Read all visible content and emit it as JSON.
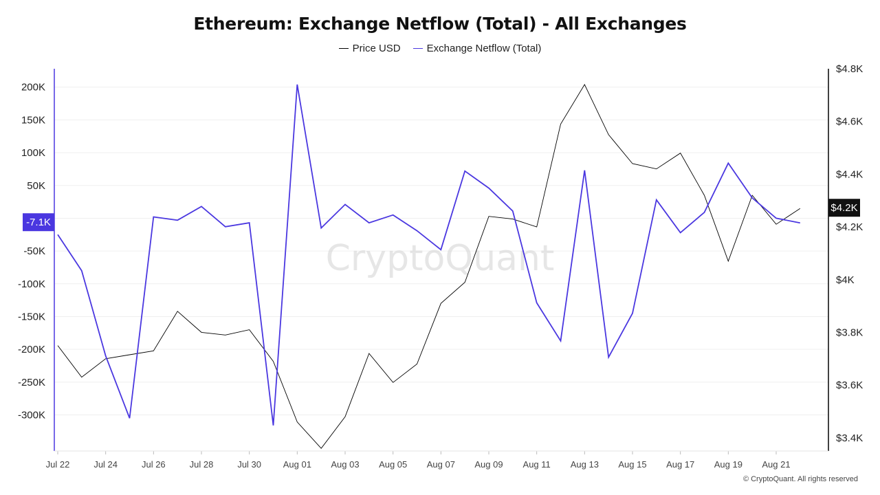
{
  "title": "Ethereum: Exchange Netflow (Total) - All Exchanges",
  "copyright": "© CryptoQuant. All rights reserved",
  "watermark": "CryptoQuant",
  "colors": {
    "price": "#000000",
    "netflow": "#4a37e0",
    "grid": "#efefef",
    "axis_left": "#4a37e0",
    "axis_right": "#000000",
    "price_badge_bg": "#111111",
    "netflow_badge_bg": "#4a37e0"
  },
  "chart_data": {
    "type": "line",
    "title": "Ethereum: Exchange Netflow (Total) - All Exchanges",
    "legend_position": "top-center",
    "grid": true,
    "x": [
      "Jul 22",
      "Jul 23",
      "Jul 24",
      "Jul 25",
      "Jul 26",
      "Jul 27",
      "Jul 28",
      "Jul 29",
      "Jul 30",
      "Jul 31",
      "Aug 01",
      "Aug 02",
      "Aug 03",
      "Aug 04",
      "Aug 05",
      "Aug 06",
      "Aug 07",
      "Aug 08",
      "Aug 09",
      "Aug 10",
      "Aug 11",
      "Aug 12",
      "Aug 13",
      "Aug 14",
      "Aug 15",
      "Aug 16",
      "Aug 17",
      "Aug 18",
      "Aug 19",
      "Aug 20",
      "Aug 21",
      "Aug 22"
    ],
    "x_tick_labels": [
      "Jul 22",
      "Jul 24",
      "Jul 26",
      "Jul 28",
      "Jul 30",
      "Aug 01",
      "Aug 03",
      "Aug 05",
      "Aug 07",
      "Aug 09",
      "Aug 11",
      "Aug 13",
      "Aug 15",
      "Aug 17",
      "Aug 19",
      "Aug 21"
    ],
    "y_left": {
      "ticks": [
        200000,
        150000,
        100000,
        50000,
        0,
        -50000,
        -100000,
        -150000,
        -200000,
        -250000,
        -300000
      ],
      "tick_labels": [
        "200K",
        "150K",
        "100K",
        "50K",
        "",
        "-50K",
        "-100K",
        "-150K",
        "-200K",
        "-250K",
        "-300K"
      ],
      "range": [
        -355000,
        228000
      ]
    },
    "y_right": {
      "ticks": [
        4800,
        4600,
        4400,
        4200,
        4000,
        3800,
        3600,
        3400
      ],
      "tick_labels": [
        "$4.8K",
        "$4.6K",
        "$4.4K",
        "$4.2K",
        "$4K",
        "$3.8K",
        "$3.6K",
        "$3.4K"
      ],
      "range": [
        3350,
        4800
      ]
    },
    "series": [
      {
        "name": "Price USD",
        "axis": "right",
        "color": "#000000",
        "values": [
          3750,
          3630,
          3700,
          3715,
          3730,
          3880,
          3800,
          3790,
          3810,
          3690,
          3460,
          3360,
          3480,
          3720,
          3610,
          3680,
          3910,
          3990,
          4240,
          4230,
          4200,
          4590,
          4740,
          4550,
          4440,
          4420,
          4480,
          4320,
          4070,
          4320,
          4210,
          4270
        ]
      },
      {
        "name": "Exchange Netflow (Total)",
        "axis": "left",
        "color": "#4a37e0",
        "values": [
          -25000,
          -80000,
          -210000,
          -305000,
          2000,
          -3000,
          18000,
          -13000,
          -7000,
          -316000,
          204000,
          -15000,
          21000,
          -7000,
          5000,
          -19000,
          -48000,
          72000,
          46000,
          11000,
          -129000,
          -187000,
          73000,
          -212000,
          -145000,
          28000,
          -22000,
          9000,
          84000,
          31000,
          0,
          -7100
        ]
      }
    ],
    "current_values": {
      "price_label": "$4.2K",
      "netflow_label": "-7.1K"
    }
  }
}
